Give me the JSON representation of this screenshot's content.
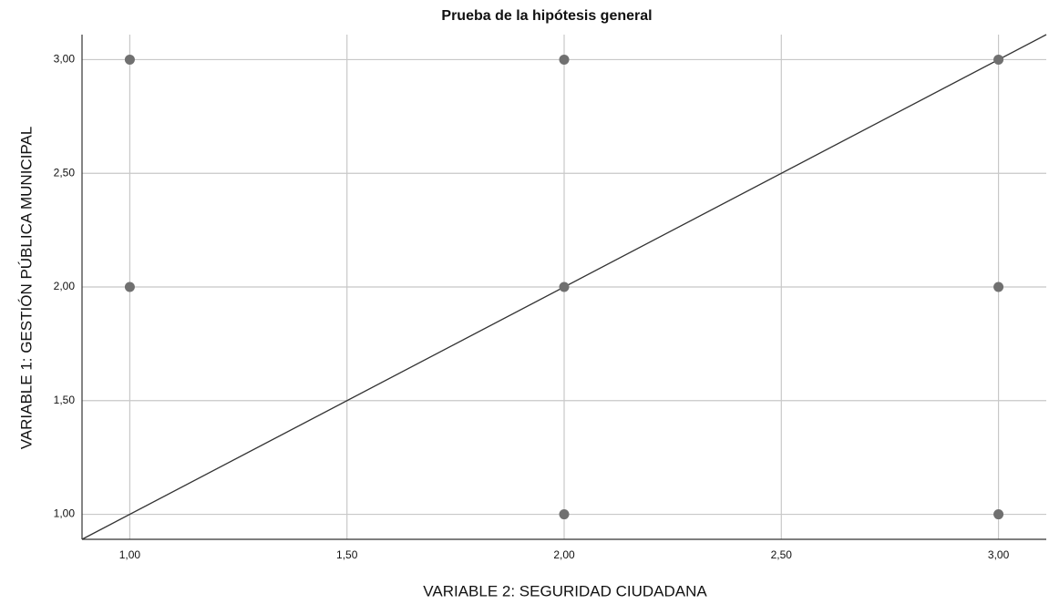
{
  "chart_data": {
    "type": "scatter",
    "title": "Prueba de la hipótesis general",
    "x_label": "VARIABLE 2: SEGURIDAD CIUDADANA",
    "y_label": "VARIABLE 1: GESTIÓN PÚBLICA MUNICIPAL",
    "x": [
      1,
      1,
      2,
      2,
      2,
      3,
      3,
      3
    ],
    "y": [
      3,
      2,
      3,
      2,
      1,
      3,
      2,
      1
    ],
    "color": "#707070",
    "fit_line": {
      "slope": 1,
      "intercept": 0,
      "color": "#333333"
    },
    "xlim": [
      0.89,
      3.11
    ],
    "ylim": [
      0.89,
      3.11
    ],
    "xticks": [
      {
        "value": 1,
        "label": "1,00"
      },
      {
        "value": 1.5,
        "label": "1,50"
      },
      {
        "value": 2,
        "label": "2,00"
      },
      {
        "value": 2.5,
        "label": "2,50"
      },
      {
        "value": 3,
        "label": "3,00"
      }
    ],
    "yticks": [
      {
        "value": 1,
        "label": "1,00"
      },
      {
        "value": 1.5,
        "label": "1,50"
      },
      {
        "value": 2,
        "label": "2,00"
      },
      {
        "value": 2.5,
        "label": "2,50"
      },
      {
        "value": 3,
        "label": "3,00"
      }
    ],
    "grid": true
  }
}
